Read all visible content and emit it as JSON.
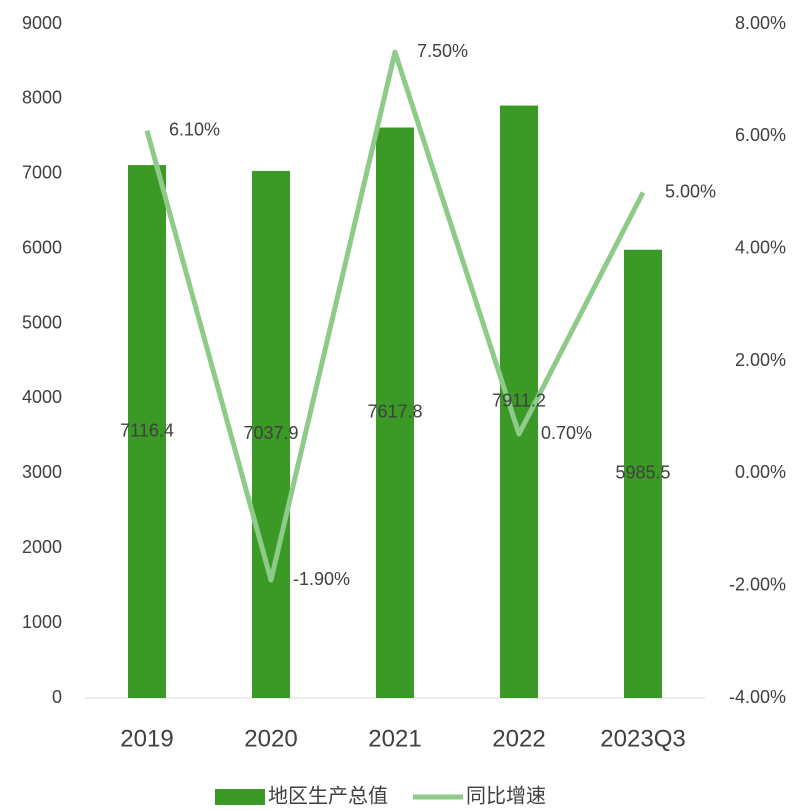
{
  "chart_data": {
    "type": "bar-line",
    "categories": [
      "2019",
      "2020",
      "2021",
      "2022",
      "2023Q3"
    ],
    "series": [
      {
        "name": "地区生产总值",
        "type": "bar",
        "color": "#3b9a25",
        "axis": "y",
        "values": [
          7116.4,
          7037.9,
          7617.8,
          7911.2,
          5985.5
        ]
      },
      {
        "name": "同比增速",
        "type": "line",
        "color": "#8ecb89",
        "axis": "y2",
        "values": [
          6.1,
          -1.9,
          7.5,
          0.7,
          5.0
        ],
        "value_labels": [
          "6.10%",
          "-1.90%",
          "7.50%",
          "0.70%",
          "5.00%"
        ]
      }
    ],
    "ylim": [
      0,
      9000
    ],
    "yticks": [
      0,
      1000,
      2000,
      3000,
      4000,
      5000,
      6000,
      7000,
      8000,
      9000
    ],
    "y2lim": [
      -4,
      8
    ],
    "y2ticks": [
      {
        "value": -4,
        "label": "-4.00%"
      },
      {
        "value": -2,
        "label": "-2.00%"
      },
      {
        "value": 0,
        "label": "0.00%"
      },
      {
        "value": 2,
        "label": "2.00%"
      },
      {
        "value": 4,
        "label": "4.00%"
      },
      {
        "value": 6,
        "label": "6.00%"
      },
      {
        "value": 8,
        "label": "8.00%"
      }
    ],
    "legend": "bottom"
  }
}
